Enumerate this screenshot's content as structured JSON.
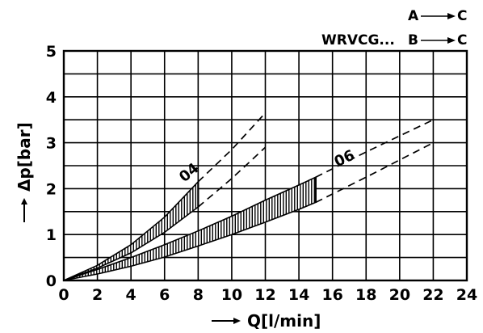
{
  "chart_data": {
    "type": "line",
    "xlabel": "Q[l/min]",
    "ylabel": "Δp[bar]",
    "xlim": [
      0,
      24
    ],
    "ylim": [
      0,
      5
    ],
    "x_ticks": [
      "0",
      "2",
      "4",
      "6",
      "8",
      "10",
      "12",
      "14",
      "16",
      "18",
      "20",
      "22",
      "24"
    ],
    "y_ticks": [
      "0",
      "1",
      "2",
      "3",
      "4",
      "5"
    ],
    "grid": true,
    "legend": {
      "model": "WRVCG...",
      "paths": [
        {
          "from": "A",
          "to": "C"
        },
        {
          "from": "B",
          "to": "C"
        }
      ]
    },
    "series": [
      {
        "name": "04",
        "band_measured_x": [
          0,
          8
        ],
        "upper": [
          [
            0,
            0
          ],
          [
            2,
            0.33
          ],
          [
            4,
            0.78
          ],
          [
            6,
            1.38
          ],
          [
            8,
            2.15
          ],
          [
            10,
            2.85
          ],
          [
            12,
            3.65
          ]
        ],
        "lower": [
          [
            0,
            0
          ],
          [
            2,
            0.27
          ],
          [
            4,
            0.6
          ],
          [
            6,
            1.05
          ],
          [
            8,
            1.6
          ],
          [
            10,
            2.22
          ],
          [
            12,
            2.9
          ]
        ]
      },
      {
        "name": "06",
        "band_measured_x": [
          0,
          15
        ],
        "upper": [
          [
            0,
            0
          ],
          [
            2,
            0.24
          ],
          [
            4,
            0.5
          ],
          [
            6,
            0.78
          ],
          [
            8,
            1.08
          ],
          [
            10,
            1.4
          ],
          [
            12,
            1.75
          ],
          [
            14,
            2.08
          ],
          [
            15,
            2.25
          ],
          [
            18,
            2.8
          ],
          [
            22,
            3.5
          ]
        ],
        "lower": [
          [
            0,
            0
          ],
          [
            2,
            0.14
          ],
          [
            4,
            0.31
          ],
          [
            6,
            0.51
          ],
          [
            8,
            0.75
          ],
          [
            10,
            1.0
          ],
          [
            12,
            1.27
          ],
          [
            14,
            1.55
          ],
          [
            15,
            1.7
          ],
          [
            18,
            2.25
          ],
          [
            22,
            3.0
          ]
        ]
      }
    ]
  }
}
